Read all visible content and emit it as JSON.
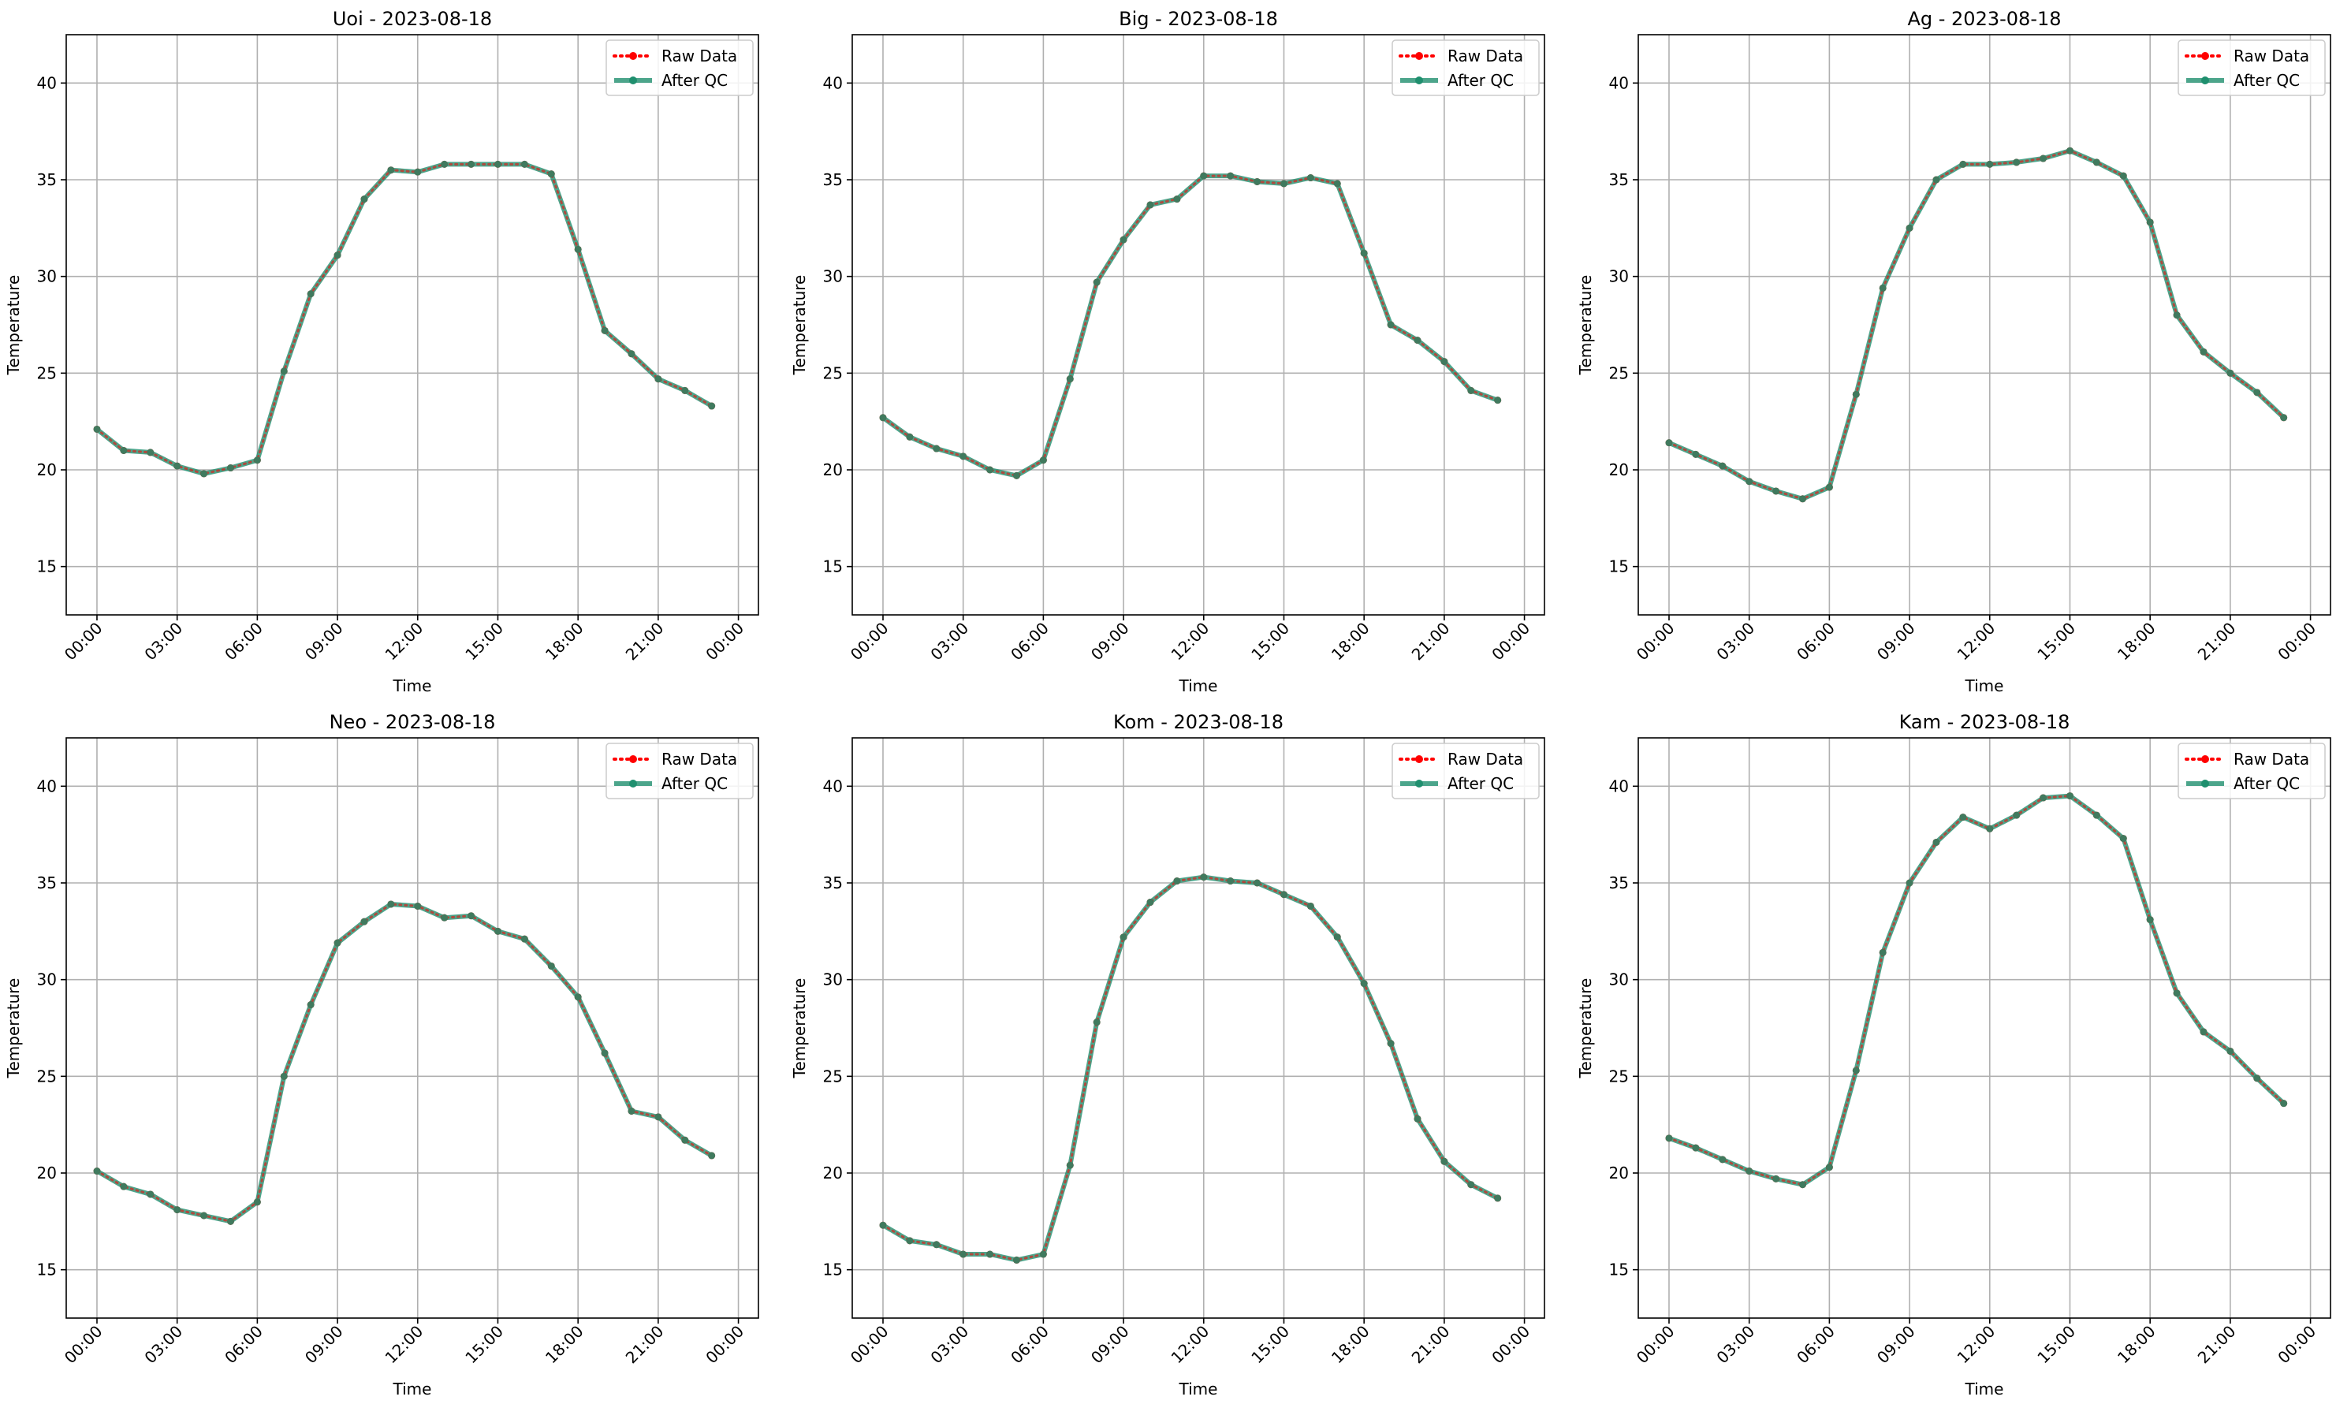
{
  "figure": {
    "legend_labels": [
      "Raw Data",
      "After QC"
    ],
    "colors": {
      "raw": "#ff0000",
      "qc": "#1f8f6e",
      "grid": "#b0b0b0",
      "axis": "#000000",
      "legend_border": "#cccccc"
    }
  },
  "chart_data": [
    {
      "type": "line",
      "title": "Uoi - 2023-08-18",
      "xlabel": "Time",
      "ylabel": "Temperature",
      "x_ticks": [
        "00:00",
        "03:00",
        "06:00",
        "09:00",
        "12:00",
        "15:00",
        "18:00",
        "21:00",
        "00:00"
      ],
      "y_ticks": [
        15,
        20,
        25,
        30,
        35,
        40
      ],
      "ylim": [
        12.5,
        42.5
      ],
      "grid": true,
      "legend": "top-right",
      "x_hours": [
        0,
        1,
        2,
        3,
        4,
        5,
        6,
        7,
        8,
        9,
        10,
        11,
        12,
        13,
        14,
        15,
        16,
        17,
        18,
        19,
        20,
        21,
        22,
        23
      ],
      "series": [
        {
          "name": "Raw Data",
          "values": [
            22.1,
            21.0,
            20.9,
            20.2,
            19.8,
            20.1,
            20.5,
            25.1,
            29.1,
            31.1,
            34.0,
            35.5,
            35.4,
            35.8,
            35.8,
            35.8,
            35.8,
            35.3,
            31.4,
            27.2,
            26.0,
            24.7,
            24.1,
            23.3
          ]
        },
        {
          "name": "After QC",
          "values": [
            22.1,
            21.0,
            20.9,
            20.2,
            19.8,
            20.1,
            20.5,
            25.1,
            29.1,
            31.1,
            34.0,
            35.5,
            35.4,
            35.8,
            35.8,
            35.8,
            35.8,
            35.3,
            31.4,
            27.2,
            26.0,
            24.7,
            24.1,
            23.3
          ]
        }
      ]
    },
    {
      "type": "line",
      "title": "Big - 2023-08-18",
      "xlabel": "Time",
      "ylabel": "Temperature",
      "x_ticks": [
        "00:00",
        "03:00",
        "06:00",
        "09:00",
        "12:00",
        "15:00",
        "18:00",
        "21:00",
        "00:00"
      ],
      "y_ticks": [
        15,
        20,
        25,
        30,
        35,
        40
      ],
      "ylim": [
        12.5,
        42.5
      ],
      "grid": true,
      "legend": "top-right",
      "x_hours": [
        0,
        1,
        2,
        3,
        4,
        5,
        6,
        7,
        8,
        9,
        10,
        11,
        12,
        13,
        14,
        15,
        16,
        17,
        18,
        19,
        20,
        21,
        22,
        23
      ],
      "series": [
        {
          "name": "Raw Data",
          "values": [
            22.7,
            21.7,
            21.1,
            20.7,
            20.0,
            19.7,
            20.5,
            24.7,
            29.7,
            31.9,
            33.7,
            34.0,
            35.2,
            35.2,
            34.9,
            34.8,
            35.1,
            34.8,
            31.2,
            27.5,
            26.7,
            25.6,
            24.1,
            23.6
          ]
        },
        {
          "name": "After QC",
          "values": [
            22.7,
            21.7,
            21.1,
            20.7,
            20.0,
            19.7,
            20.5,
            24.7,
            29.7,
            31.9,
            33.7,
            34.0,
            35.2,
            35.2,
            34.9,
            34.8,
            35.1,
            34.8,
            31.2,
            27.5,
            26.7,
            25.6,
            24.1,
            23.6
          ]
        }
      ]
    },
    {
      "type": "line",
      "title": "Ag - 2023-08-18",
      "xlabel": "Time",
      "ylabel": "Temperature",
      "x_ticks": [
        "00:00",
        "03:00",
        "06:00",
        "09:00",
        "12:00",
        "15:00",
        "18:00",
        "21:00",
        "00:00"
      ],
      "y_ticks": [
        15,
        20,
        25,
        30,
        35,
        40
      ],
      "ylim": [
        12.5,
        42.5
      ],
      "grid": true,
      "legend": "top-right",
      "x_hours": [
        0,
        1,
        2,
        3,
        4,
        5,
        6,
        7,
        8,
        9,
        10,
        11,
        12,
        13,
        14,
        15,
        16,
        17,
        18,
        19,
        20,
        21,
        22,
        23
      ],
      "series": [
        {
          "name": "Raw Data",
          "values": [
            21.4,
            20.8,
            20.2,
            19.4,
            18.9,
            18.5,
            19.1,
            23.9,
            29.4,
            32.5,
            35.0,
            35.8,
            35.8,
            35.9,
            36.1,
            36.5,
            35.9,
            35.2,
            32.8,
            28.0,
            26.1,
            25.0,
            24.0,
            22.7
          ]
        },
        {
          "name": "After QC",
          "values": [
            21.4,
            20.8,
            20.2,
            19.4,
            18.9,
            18.5,
            19.1,
            23.9,
            29.4,
            32.5,
            35.0,
            35.8,
            35.8,
            35.9,
            36.1,
            36.5,
            35.9,
            35.2,
            32.8,
            28.0,
            26.1,
            25.0,
            24.0,
            22.7
          ]
        }
      ]
    },
    {
      "type": "line",
      "title": "Neo - 2023-08-18",
      "xlabel": "Time",
      "ylabel": "Temperature",
      "x_ticks": [
        "00:00",
        "03:00",
        "06:00",
        "09:00",
        "12:00",
        "15:00",
        "18:00",
        "21:00",
        "00:00"
      ],
      "y_ticks": [
        15,
        20,
        25,
        30,
        35,
        40
      ],
      "ylim": [
        12.5,
        42.5
      ],
      "grid": true,
      "legend": "top-right",
      "x_hours": [
        0,
        1,
        2,
        3,
        4,
        5,
        6,
        7,
        8,
        9,
        10,
        11,
        12,
        13,
        14,
        15,
        16,
        17,
        18,
        19,
        20,
        21,
        22,
        23
      ],
      "series": [
        {
          "name": "Raw Data",
          "values": [
            20.1,
            19.3,
            18.9,
            18.1,
            17.8,
            17.5,
            18.5,
            25.0,
            28.7,
            31.9,
            33.0,
            33.9,
            33.8,
            33.2,
            33.3,
            32.5,
            32.1,
            30.7,
            29.1,
            26.2,
            23.2,
            22.9,
            21.7,
            20.9
          ]
        },
        {
          "name": "After QC",
          "values": [
            20.1,
            19.3,
            18.9,
            18.1,
            17.8,
            17.5,
            18.5,
            25.0,
            28.7,
            31.9,
            33.0,
            33.9,
            33.8,
            33.2,
            33.3,
            32.5,
            32.1,
            30.7,
            29.1,
            26.2,
            23.2,
            22.9,
            21.7,
            20.9
          ]
        }
      ]
    },
    {
      "type": "line",
      "title": "Kom - 2023-08-18",
      "xlabel": "Time",
      "ylabel": "Temperature",
      "x_ticks": [
        "00:00",
        "03:00",
        "06:00",
        "09:00",
        "12:00",
        "15:00",
        "18:00",
        "21:00",
        "00:00"
      ],
      "y_ticks": [
        15,
        20,
        25,
        30,
        35,
        40
      ],
      "ylim": [
        12.5,
        42.5
      ],
      "grid": true,
      "legend": "top-right",
      "x_hours": [
        0,
        1,
        2,
        3,
        4,
        5,
        6,
        7,
        8,
        9,
        10,
        11,
        12,
        13,
        14,
        15,
        16,
        17,
        18,
        19,
        20,
        21,
        22,
        23
      ],
      "series": [
        {
          "name": "Raw Data",
          "values": [
            17.3,
            16.5,
            16.3,
            15.8,
            15.8,
            15.5,
            15.8,
            20.4,
            27.8,
            32.2,
            34.0,
            35.1,
            35.3,
            35.1,
            35.0,
            34.4,
            33.8,
            32.2,
            29.8,
            26.7,
            22.8,
            20.6,
            19.4,
            18.7
          ]
        },
        {
          "name": "After QC",
          "values": [
            17.3,
            16.5,
            16.3,
            15.8,
            15.8,
            15.5,
            15.8,
            20.4,
            27.8,
            32.2,
            34.0,
            35.1,
            35.3,
            35.1,
            35.0,
            34.4,
            33.8,
            32.2,
            29.8,
            26.7,
            22.8,
            20.6,
            19.4,
            18.7
          ]
        }
      ]
    },
    {
      "type": "line",
      "title": "Kam - 2023-08-18",
      "xlabel": "Time",
      "ylabel": "Temperature",
      "x_ticks": [
        "00:00",
        "03:00",
        "06:00",
        "09:00",
        "12:00",
        "15:00",
        "18:00",
        "21:00",
        "00:00"
      ],
      "y_ticks": [
        15,
        20,
        25,
        30,
        35,
        40
      ],
      "ylim": [
        12.5,
        42.5
      ],
      "grid": true,
      "legend": "top-right",
      "x_hours": [
        0,
        1,
        2,
        3,
        4,
        5,
        6,
        7,
        8,
        9,
        10,
        11,
        12,
        13,
        14,
        15,
        16,
        17,
        18,
        19,
        20,
        21,
        22,
        23
      ],
      "series": [
        {
          "name": "Raw Data",
          "values": [
            21.8,
            21.3,
            20.7,
            20.1,
            19.7,
            19.4,
            20.3,
            25.3,
            31.4,
            35.0,
            37.1,
            38.4,
            37.8,
            38.5,
            39.4,
            39.5,
            38.5,
            37.3,
            33.1,
            29.3,
            27.3,
            26.3,
            24.9,
            23.6
          ]
        },
        {
          "name": "After QC",
          "values": [
            21.8,
            21.3,
            20.7,
            20.1,
            19.7,
            19.4,
            20.3,
            25.3,
            31.4,
            35.0,
            37.1,
            38.4,
            37.8,
            38.5,
            39.4,
            39.5,
            38.5,
            37.3,
            33.1,
            29.3,
            27.3,
            26.3,
            24.9,
            23.6
          ]
        }
      ]
    }
  ]
}
